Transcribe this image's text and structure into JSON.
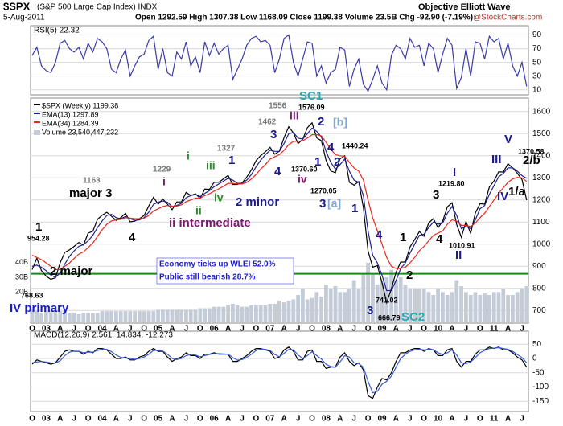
{
  "header": {
    "symbol": "$SPX",
    "name": "(S&P 500 Large Cap Index) INDX",
    "date": "5-Aug-2011",
    "quote": "Open 1292.59 High 1307.38 Low 1168.09 Close 1199.38 Volume 23.5B Chg -92.90 (-7.19%)",
    "source": "Objective Elliott Wave",
    "site": "@StockCharts.com"
  },
  "chart_data": [
    {
      "type": "line",
      "title": "RSI(5) 22.32",
      "ylim": [
        5,
        100
      ],
      "yticks": [
        10,
        30,
        50,
        70,
        90
      ],
      "grid": true,
      "series": [
        {
          "color": "#3b3ba8",
          "values": [
            60,
            72,
            45,
            38,
            35,
            50,
            78,
            82,
            70,
            65,
            72,
            55,
            78,
            65,
            85,
            80,
            70,
            40,
            35,
            55,
            68,
            30,
            45,
            58,
            62,
            82,
            88,
            40,
            70,
            35,
            30,
            65,
            55,
            80,
            45,
            58,
            35,
            80,
            60,
            78,
            62,
            70,
            75,
            25,
            40,
            55,
            75,
            85,
            88,
            80,
            82,
            75,
            35,
            55,
            85,
            90,
            50,
            30,
            55,
            80,
            78,
            30,
            45,
            20,
            35,
            40,
            72,
            68,
            15,
            40,
            55,
            18,
            8,
            25,
            45,
            20,
            10,
            60,
            75,
            70,
            55,
            85,
            72,
            75,
            45,
            78,
            70,
            35,
            62,
            85,
            75,
            12,
            28,
            70,
            30,
            80,
            78,
            55,
            88,
            80,
            85,
            55,
            78,
            45,
            30,
            50,
            15
          ]
        }
      ]
    },
    {
      "type": "line",
      "ylim": [
        650,
        1650
      ],
      "yticks": [
        700,
        800,
        900,
        1000,
        1100,
        1200,
        1300,
        1400,
        1500,
        1600
      ],
      "y2lim": [
        0,
        150
      ],
      "y2ticks": [
        {
          "value": 20,
          "label": "20B"
        },
        {
          "value": 30,
          "label": "30B"
        },
        {
          "value": 40,
          "label": "40B"
        }
      ],
      "grid": true,
      "reference_line": 866,
      "categories": [
        "O",
        null,
        null,
        "03",
        null,
        null,
        "A",
        null,
        null,
        "J",
        null,
        null,
        "O",
        null,
        null,
        "04",
        null,
        null,
        "A",
        null,
        null,
        "J",
        null,
        null,
        "O",
        null,
        null,
        "05",
        null,
        null,
        "A",
        null,
        null,
        "J",
        null,
        null,
        "O",
        null,
        null,
        "06",
        null,
        null,
        "A",
        null,
        null,
        "J",
        null,
        null,
        "O",
        null,
        null,
        "07",
        null,
        null,
        "A",
        null,
        null,
        "J",
        null,
        null,
        "O",
        null,
        null,
        "08",
        null,
        null,
        "A",
        null,
        null,
        "J",
        null,
        null,
        "O",
        null,
        null,
        "09",
        null,
        null,
        "A",
        null,
        null,
        "J",
        null,
        null,
        "O",
        null,
        null,
        "10",
        null,
        null,
        "A",
        null,
        null,
        "J",
        null,
        null,
        "O",
        null,
        null,
        "11",
        null,
        null,
        "A",
        null,
        null,
        "J",
        null
      ],
      "series": [
        {
          "name": "$SPX (Weekly) 1199.38",
          "color": "#000000",
          "values": [
            885,
            936,
            880,
            855,
            841,
            848,
            916,
            963,
            974,
            990,
            1008,
            996,
            1050,
            1058,
            1112,
            1131,
            1144,
            1126,
            1107,
            1120,
            1140,
            1101,
            1104,
            1115,
            1130,
            1173,
            1212,
            1181,
            1204,
            1181,
            1156,
            1191,
            1191,
            1234,
            1220,
            1228,
            1207,
            1249,
            1248,
            1280,
            1280,
            1295,
            1311,
            1270,
            1270,
            1277,
            1304,
            1336,
            1378,
            1401,
            1418,
            1438,
            1407,
            1421,
            1482,
            1531,
            1503,
            1455,
            1474,
            1527,
            1549,
            1481,
            1468,
            1379,
            1331,
            1323,
            1386,
            1400,
            1280,
            1267,
            1283,
            1165,
            969,
            896,
            903,
            826,
            735,
            798,
            873,
            919,
            919,
            987,
            1021,
            1057,
            1036,
            1096,
            1115,
            1074,
            1104,
            1169,
            1187,
            1089,
            1031,
            1102,
            1049,
            1141,
            1183,
            1181,
            1258,
            1286,
            1327,
            1326,
            1364,
            1345,
            1321,
            1292,
            1199
          ]
        },
        {
          "name": "EMA(13) 1297.89",
          "color": "#1f1f8f",
          "values": [
            900,
            905,
            895,
            880,
            860,
            850,
            870,
            910,
            945,
            970,
            990,
            998,
            1015,
            1040,
            1075,
            1105,
            1130,
            1135,
            1120,
            1115,
            1125,
            1115,
            1108,
            1110,
            1120,
            1145,
            1180,
            1190,
            1195,
            1190,
            1170,
            1175,
            1185,
            1210,
            1220,
            1225,
            1215,
            1230,
            1242,
            1260,
            1272,
            1285,
            1298,
            1290,
            1275,
            1275,
            1290,
            1315,
            1350,
            1380,
            1405,
            1425,
            1420,
            1420,
            1455,
            1500,
            1505,
            1480,
            1475,
            1500,
            1525,
            1510,
            1485,
            1420,
            1370,
            1340,
            1360,
            1385,
            1330,
            1290,
            1280,
            1220,
            1060,
            950,
            915,
            860,
            790,
            790,
            835,
            890,
            915,
            960,
            1000,
            1040,
            1045,
            1075,
            1100,
            1090,
            1095,
            1140,
            1170,
            1130,
            1070,
            1080,
            1070,
            1110,
            1160,
            1175,
            1225,
            1265,
            1305,
            1320,
            1345,
            1345,
            1330,
            1310,
            1298
          ]
        },
        {
          "name": "EMA(34) 1284.39",
          "color": "#e8281e",
          "values": [
            950,
            940,
            930,
            915,
            900,
            885,
            885,
            900,
            915,
            935,
            955,
            965,
            985,
            1005,
            1035,
            1065,
            1090,
            1105,
            1110,
            1112,
            1120,
            1118,
            1115,
            1115,
            1118,
            1130,
            1150,
            1160,
            1170,
            1175,
            1170,
            1172,
            1178,
            1192,
            1200,
            1208,
            1208,
            1220,
            1228,
            1240,
            1250,
            1262,
            1275,
            1275,
            1272,
            1272,
            1280,
            1295,
            1315,
            1340,
            1360,
            1385,
            1395,
            1405,
            1425,
            1450,
            1465,
            1465,
            1468,
            1480,
            1495,
            1495,
            1490,
            1460,
            1430,
            1405,
            1400,
            1398,
            1370,
            1345,
            1330,
            1290,
            1200,
            1120,
            1060,
            1000,
            940,
            900,
            890,
            890,
            895,
            915,
            940,
            970,
            990,
            1015,
            1040,
            1050,
            1060,
            1090,
            1110,
            1105,
            1085,
            1085,
            1080,
            1095,
            1120,
            1140,
            1170,
            1200,
            1230,
            1255,
            1280,
            1295,
            1302,
            1300,
            1284
          ]
        },
        {
          "name": "Volume 23,540,447,232",
          "color": "#c4ccd8",
          "axis": "y2",
          "values": [
            8,
            7,
            6,
            7,
            7,
            7,
            7,
            7,
            6,
            6,
            5,
            6,
            6,
            6,
            6,
            7,
            7,
            7,
            7,
            7,
            7,
            7,
            7,
            7,
            7,
            7,
            7,
            8,
            8,
            8,
            8,
            8,
            8,
            8,
            8,
            8,
            9,
            9,
            9,
            10,
            10,
            10,
            11,
            12,
            11,
            10,
            10,
            11,
            11,
            11,
            11,
            12,
            12,
            14,
            13,
            14,
            15,
            18,
            22,
            15,
            16,
            20,
            17,
            25,
            22,
            24,
            20,
            20,
            22,
            28,
            22,
            32,
            40,
            32,
            25,
            28,
            30,
            35,
            28,
            30,
            25,
            22,
            22,
            22,
            22,
            20,
            18,
            22,
            20,
            18,
            20,
            28,
            24,
            20,
            18,
            20,
            18,
            19,
            18,
            20,
            20,
            22,
            18,
            18,
            20,
            22,
            24
          ]
        }
      ],
      "annotations": [
        "1",
        "954.28",
        "768.63",
        "2 major",
        "IV primary",
        "1163",
        "major 3",
        "4",
        "1229",
        "i",
        "ii intermediate",
        "i",
        "iii",
        "ii",
        "iv",
        "1327",
        "1",
        "2 minor",
        "1462",
        "3",
        "4",
        "1556",
        "1576.09",
        "iii",
        "2",
        "SC1",
        "[b]",
        "1",
        "iv",
        "1370.60",
        "1270.05",
        "3",
        "[a]",
        "4",
        "1440.24",
        "2",
        "1",
        "4",
        "741.02",
        "666.79",
        "3",
        "SC2",
        "1",
        "2",
        "3",
        "I",
        "1219.80",
        "4",
        "1010.91",
        "II",
        "III",
        "V",
        "1370.58",
        "2/b",
        "IV",
        "1/a",
        "Economy ticks up WLEI 52.0%",
        "Public still bearish 28.7%"
      ]
    },
    {
      "type": "line",
      "title": "MACD(12,26,9) 2.561, 14.834, -12.273",
      "ylim": [
        -180,
        90
      ],
      "yticks": [
        -150,
        -100,
        -50,
        0,
        50
      ],
      "grid": true,
      "series": [
        {
          "color": "#000000",
          "values": [
            -20,
            -5,
            -10,
            -15,
            -20,
            -15,
            5,
            25,
            30,
            25,
            25,
            15,
            25,
            20,
            35,
            35,
            30,
            15,
            0,
            0,
            5,
            -5,
            -5,
            5,
            10,
            25,
            35,
            25,
            25,
            5,
            -10,
            0,
            5,
            20,
            10,
            10,
            0,
            15,
            15,
            20,
            15,
            15,
            15,
            -10,
            -10,
            0,
            10,
            25,
            35,
            35,
            30,
            25,
            0,
            5,
            30,
            40,
            25,
            -5,
            -5,
            25,
            30,
            -10,
            -10,
            -35,
            -30,
            -30,
            5,
            20,
            -10,
            -25,
            -15,
            -40,
            -130,
            -140,
            -100,
            -70,
            -75,
            -50,
            -10,
            20,
            20,
            30,
            35,
            35,
            25,
            35,
            30,
            10,
            10,
            30,
            35,
            -10,
            -30,
            -10,
            -10,
            15,
            30,
            30,
            40,
            35,
            40,
            30,
            30,
            20,
            5,
            -5,
            -30
          ]
        },
        {
          "color": "#3a5ad8",
          "values": [
            -15,
            -12,
            -10,
            -12,
            -15,
            -16,
            -8,
            10,
            22,
            26,
            25,
            20,
            22,
            22,
            28,
            32,
            32,
            24,
            12,
            4,
            2,
            0,
            -3,
            0,
            5,
            15,
            28,
            28,
            26,
            15,
            0,
            -4,
            0,
            10,
            14,
            12,
            6,
            10,
            14,
            17,
            17,
            16,
            15,
            3,
            -6,
            -4,
            4,
            15,
            28,
            33,
            32,
            28,
            14,
            6,
            18,
            32,
            30,
            12,
            0,
            10,
            24,
            10,
            -2,
            -20,
            -28,
            -30,
            -12,
            10,
            5,
            -15,
            -18,
            -30,
            -80,
            -120,
            -115,
            -90,
            -80,
            -62,
            -30,
            0,
            15,
            25,
            30,
            33,
            30,
            32,
            31,
            20,
            14,
            20,
            30,
            12,
            -15,
            -18,
            -12,
            3,
            20,
            28,
            35,
            36,
            38,
            35,
            32,
            25,
            14,
            3,
            -15
          ]
        }
      ]
    }
  ]
}
